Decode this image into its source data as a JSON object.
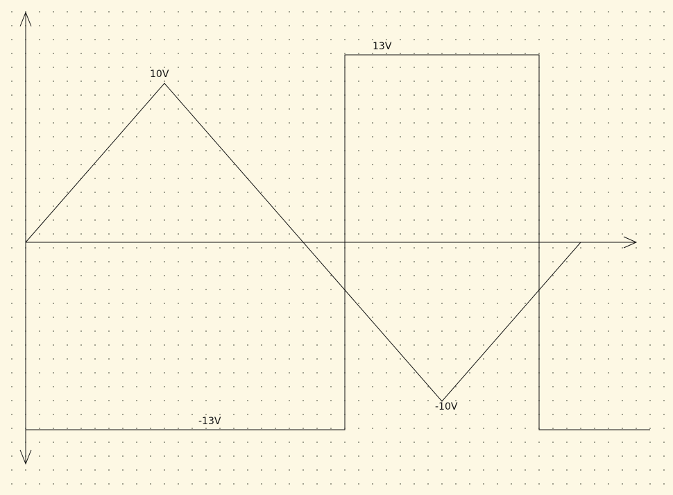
{
  "diagram": {
    "triangle_wave": {
      "peak_label": "10V",
      "trough_label": "-10V",
      "peak_value": 10,
      "trough_value": -10
    },
    "square_wave": {
      "high_label": "13V",
      "low_label": "-13V",
      "high_value": 13,
      "low_value": -13
    },
    "colors": {
      "background": "#fdf8e4",
      "line": "#111111",
      "grid_dot": "#8a8a7a"
    }
  }
}
